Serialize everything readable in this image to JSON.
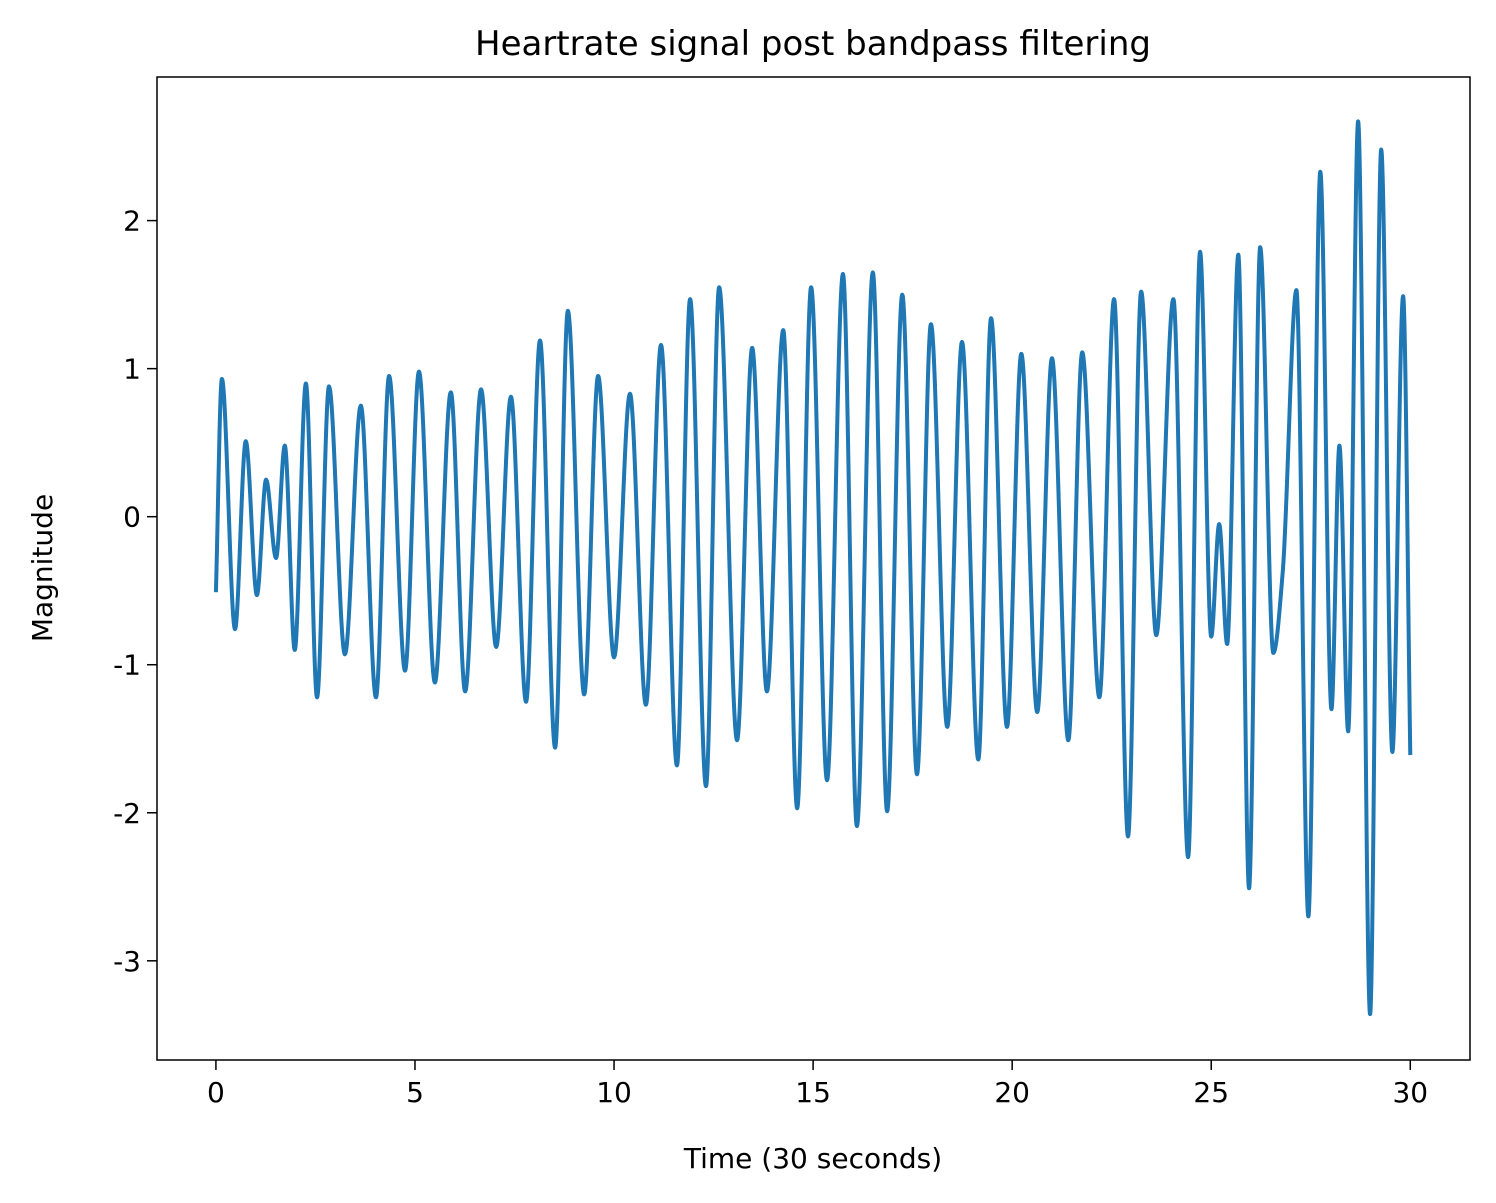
{
  "chart_data": {
    "type": "line",
    "title": "Heartrate signal post bandpass filtering",
    "xlabel": "Time (30 seconds)",
    "ylabel": "Magnitude",
    "x": [
      0,
      0.15,
      0.48,
      0.75,
      1.03,
      1.26,
      1.51,
      1.73,
      1.98,
      2.26,
      2.54,
      2.84,
      3.24,
      3.64,
      4.02,
      4.35,
      4.75,
      5.1,
      5.5,
      5.9,
      6.26,
      6.66,
      7.04,
      7.41,
      7.79,
      8.14,
      8.52,
      8.84,
      9.25,
      9.6,
      10.0,
      10.4,
      10.8,
      11.18,
      11.58,
      11.91,
      12.31,
      12.64,
      13.09,
      13.47,
      13.84,
      14.25,
      14.6,
      14.95,
      15.35,
      15.75,
      16.1,
      16.5,
      16.86,
      17.24,
      17.61,
      17.96,
      18.37,
      18.74,
      19.15,
      19.47,
      19.87,
      20.23,
      20.63,
      21.0,
      21.41,
      21.76,
      22.19,
      22.56,
      22.91,
      23.24,
      23.62,
      24.05,
      24.42,
      24.72,
      25.0,
      25.2,
      25.4,
      25.68,
      25.95,
      26.23,
      26.56,
      26.8,
      27.14,
      27.44,
      27.74,
      28.02,
      28.22,
      28.44,
      28.69,
      28.99,
      29.27,
      29.55,
      29.82,
      30.0
    ],
    "series": [
      {
        "name": "signal",
        "color": "#1f77b4",
        "values": [
          -0.51,
          0.93,
          -0.76,
          0.51,
          -0.53,
          0.25,
          -0.28,
          0.48,
          -0.9,
          0.9,
          -1.22,
          0.88,
          -0.93,
          0.75,
          -1.22,
          0.95,
          -1.04,
          0.98,
          -1.12,
          0.84,
          -1.18,
          0.86,
          -0.88,
          0.81,
          -1.25,
          1.19,
          -1.56,
          1.39,
          -1.2,
          0.95,
          -0.95,
          0.83,
          -1.27,
          1.16,
          -1.68,
          1.47,
          -1.82,
          1.55,
          -1.51,
          1.14,
          -1.18,
          1.26,
          -1.97,
          1.55,
          -1.78,
          1.64,
          -2.09,
          1.65,
          -1.99,
          1.5,
          -1.74,
          1.3,
          -1.42,
          1.18,
          -1.64,
          1.34,
          -1.42,
          1.1,
          -1.32,
          1.07,
          -1.51,
          1.11,
          -1.22,
          1.47,
          -2.16,
          1.52,
          -0.8,
          1.47,
          -2.3,
          1.79,
          -0.81,
          -0.05,
          -0.86,
          1.77,
          -2.51,
          1.82,
          -0.92,
          -0.36,
          1.53,
          -2.7,
          2.33,
          -1.3,
          0.48,
          -1.45,
          2.67,
          -3.36,
          2.48,
          -1.59,
          1.49,
          -1.61
        ]
      }
    ],
    "xlim": [
      -1.48,
      31.5
    ],
    "ylim": [
      -3.67,
      2.97
    ],
    "xticks": [
      0,
      5,
      10,
      15,
      20,
      25,
      30
    ],
    "yticks": [
      -3,
      -2,
      -1,
      0,
      1,
      2
    ]
  }
}
